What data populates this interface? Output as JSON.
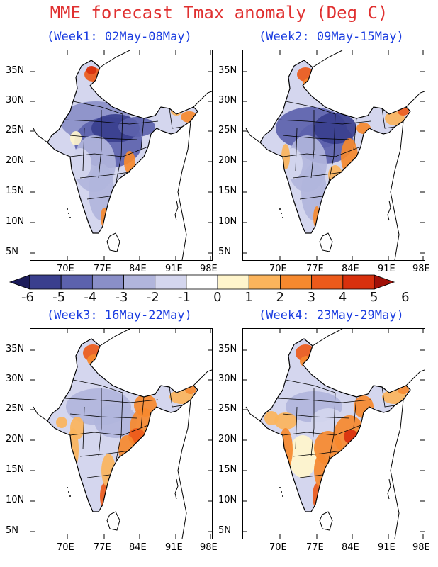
{
  "title": "MME forecast Tmax anomaly (Deg C)",
  "panels": [
    {
      "title": "(Week1: 02May-08May)",
      "pattern": "cold"
    },
    {
      "title": "(Week2: 09May-15May)",
      "pattern": "cold-east-warm"
    },
    {
      "title": "(Week3: 16May-22May)",
      "pattern": "mixed"
    },
    {
      "title": "(Week4: 23May-29May)",
      "pattern": "warm"
    }
  ],
  "lat_labels": [
    "35N",
    "30N",
    "25N",
    "20N",
    "15N",
    "10N",
    "5N"
  ],
  "lon_labels": [
    "70E",
    "77E",
    "84E",
    "91E",
    "98E"
  ],
  "colorbar": {
    "labels": [
      "-6",
      "-5",
      "-4",
      "-3",
      "-2",
      "-1",
      "0",
      "1",
      "2",
      "3",
      "4",
      "5",
      "6"
    ],
    "colors": [
      "#1c1c5a",
      "#3a3f8e",
      "#5c62ad",
      "#8a8fc8",
      "#b1b5dc",
      "#d4d6ee",
      "#ffffff",
      "#fff5cc",
      "#fbb45c",
      "#f6892e",
      "#ec5a1a",
      "#d8300d",
      "#a11008"
    ]
  }
}
